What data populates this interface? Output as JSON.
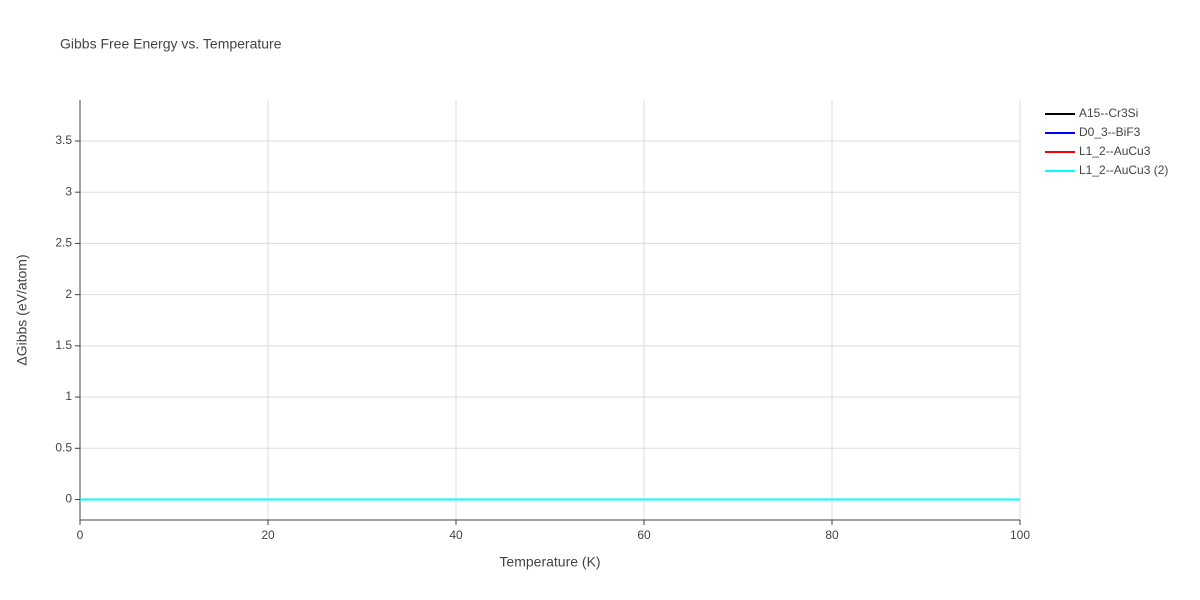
{
  "chart_data": {
    "type": "line",
    "title": "Gibbs Free Energy vs. Temperature",
    "x_label": "Temperature (K)",
    "y_label": "ΔGibbs (eV/atom)",
    "x": [
      0,
      100
    ],
    "series": [
      {
        "name": "A15--Cr3Si",
        "color": "#000000",
        "values": [
          0,
          0
        ]
      },
      {
        "name": "D0_3--BiF3",
        "color": "#0000ff",
        "values": [
          0,
          0
        ]
      },
      {
        "name": "L1_2--AuCu3",
        "color": "#ff0000",
        "values": [
          0,
          0
        ]
      },
      {
        "name": "L1_2--AuCu3 (2)",
        "color": "#00ffff",
        "values": [
          0,
          0
        ]
      }
    ],
    "xlim": [
      0,
      100
    ],
    "xticks": [
      0,
      20,
      40,
      60,
      80,
      100
    ],
    "ylim": [
      -0.2,
      3.9
    ],
    "yticks": [
      0,
      0.5,
      1,
      1.5,
      2,
      2.5,
      3,
      3.5
    ],
    "grid": true,
    "legend": "right"
  }
}
